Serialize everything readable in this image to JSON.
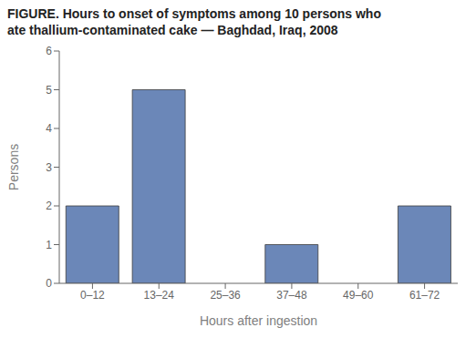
{
  "chart_data": {
    "type": "bar",
    "title": "FIGURE. Hours to onset of symptoms among 10 persons who\nate thallium-contaminated cake — Baghdad, Iraq, 2008",
    "categories": [
      "0–12",
      "13–24",
      "25–36",
      "37–48",
      "49–60",
      "61–72"
    ],
    "values": [
      2,
      5,
      0,
      1,
      0,
      2
    ],
    "color": "#6b87b8",
    "xlabel": "Hours after ingestion",
    "ylabel": "Persons",
    "ylim": [
      0,
      6
    ],
    "yticks": [
      0,
      1,
      2,
      3,
      4,
      5,
      6
    ],
    "grid": false
  }
}
